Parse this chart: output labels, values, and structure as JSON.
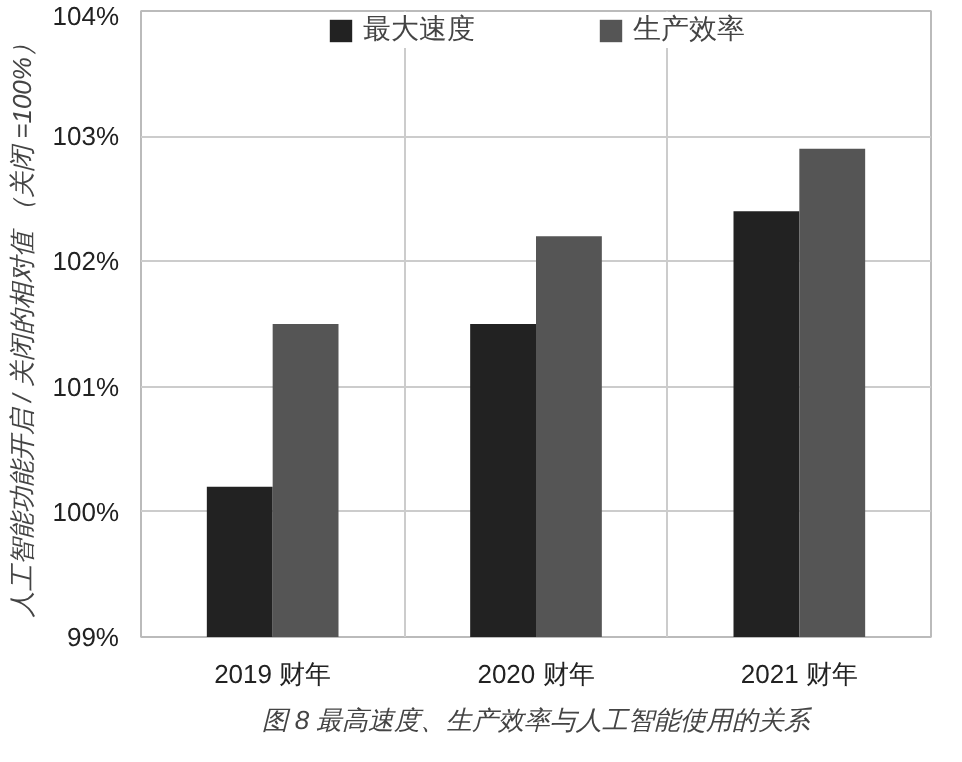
{
  "chart_data": {
    "type": "bar",
    "title": "图 8 最高速度、生产效率与人工智能使用的关系",
    "ylabel": "人工智能功能开启 / 关闭的相对值\n（关闭 =100%）",
    "categories": [
      "2019 财年",
      "2020 财年",
      "2021 财年"
    ],
    "series": [
      {
        "name": "最大速度",
        "color": "#222222",
        "values": [
          100.2,
          101.5,
          102.4
        ]
      },
      {
        "name": "生产效率",
        "color": "#555555",
        "values": [
          101.5,
          102.2,
          102.9
        ]
      }
    ],
    "ylim": [
      99,
      104
    ],
    "yticks": [
      {
        "value": 99,
        "label": "99%"
      },
      {
        "value": 100,
        "label": "100%"
      },
      {
        "value": 101,
        "label": "101%"
      },
      {
        "value": 102,
        "label": "102%"
      },
      {
        "value": 103,
        "label": "103%"
      },
      {
        "value": 104,
        "label": "104%"
      }
    ],
    "grid": true,
    "legend": "top"
  }
}
